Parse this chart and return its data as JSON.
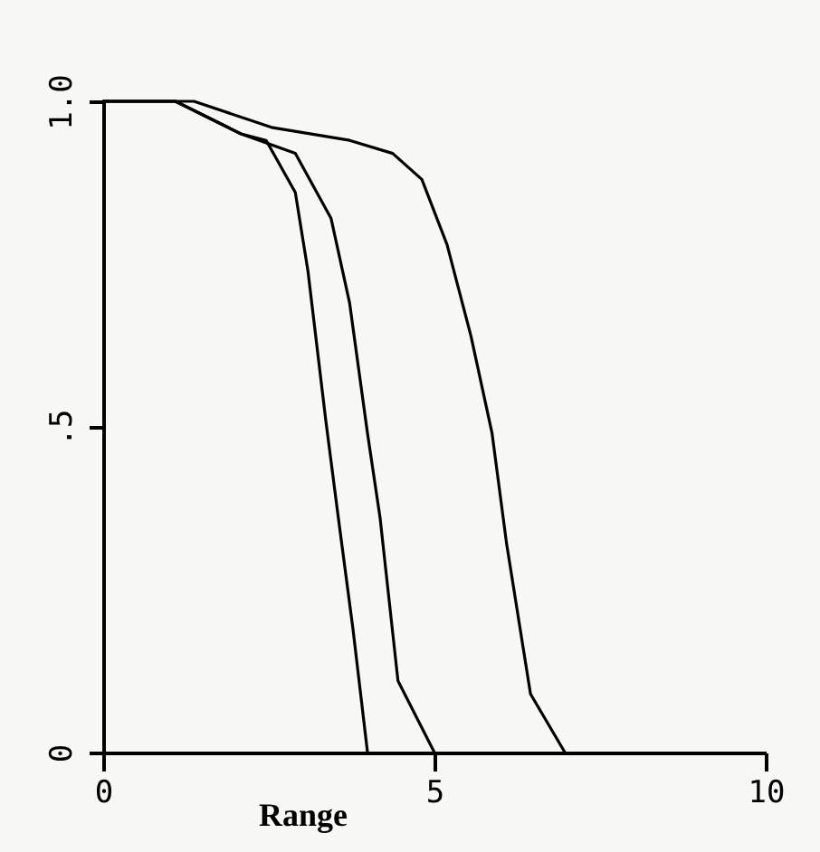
{
  "chart_data": {
    "type": "line",
    "xlabel": "Range",
    "xlim": [
      0,
      10
    ],
    "xticks": [
      0,
      5,
      10
    ],
    "ylim": [
      0,
      1
    ],
    "yticks": [
      0,
      {
        "value": 0.5,
        "label": ".5"
      },
      {
        "value": 1,
        "label": "1.0"
      }
    ],
    "grid": false,
    "legend": false,
    "marker": "none",
    "line_style": "solid",
    "series": [
      {
        "color": "#000000",
        "x": [
          0,
          1.09,
          2.08,
          2.46,
          2.9,
          3.09,
          3.36,
          3.55,
          3.77,
          3.99
        ],
        "values": [
          1,
          1,
          0.95,
          0.94,
          0.86,
          0.74,
          0.51,
          0.36,
          0.19,
          0
        ]
      },
      {
        "color": "#000000",
        "x": [
          0,
          1.09,
          2.08,
          2.9,
          3.44,
          3.72,
          3.99,
          4.18,
          4.45,
          5
        ],
        "values": [
          1,
          1,
          0.95,
          0.92,
          0.82,
          0.69,
          0.49,
          0.36,
          0.11,
          0
        ]
      },
      {
        "color": "#000000",
        "x": [
          0,
          1.37,
          2.54,
          3.72,
          4.37,
          4.81,
          5.19,
          5.55,
          5.87,
          6.09,
          6.45,
          6.97
        ],
        "values": [
          1,
          1,
          0.96,
          0.94,
          0.92,
          0.88,
          0.78,
          0.64,
          0.49,
          0.32,
          0.09,
          0
        ]
      }
    ]
  }
}
